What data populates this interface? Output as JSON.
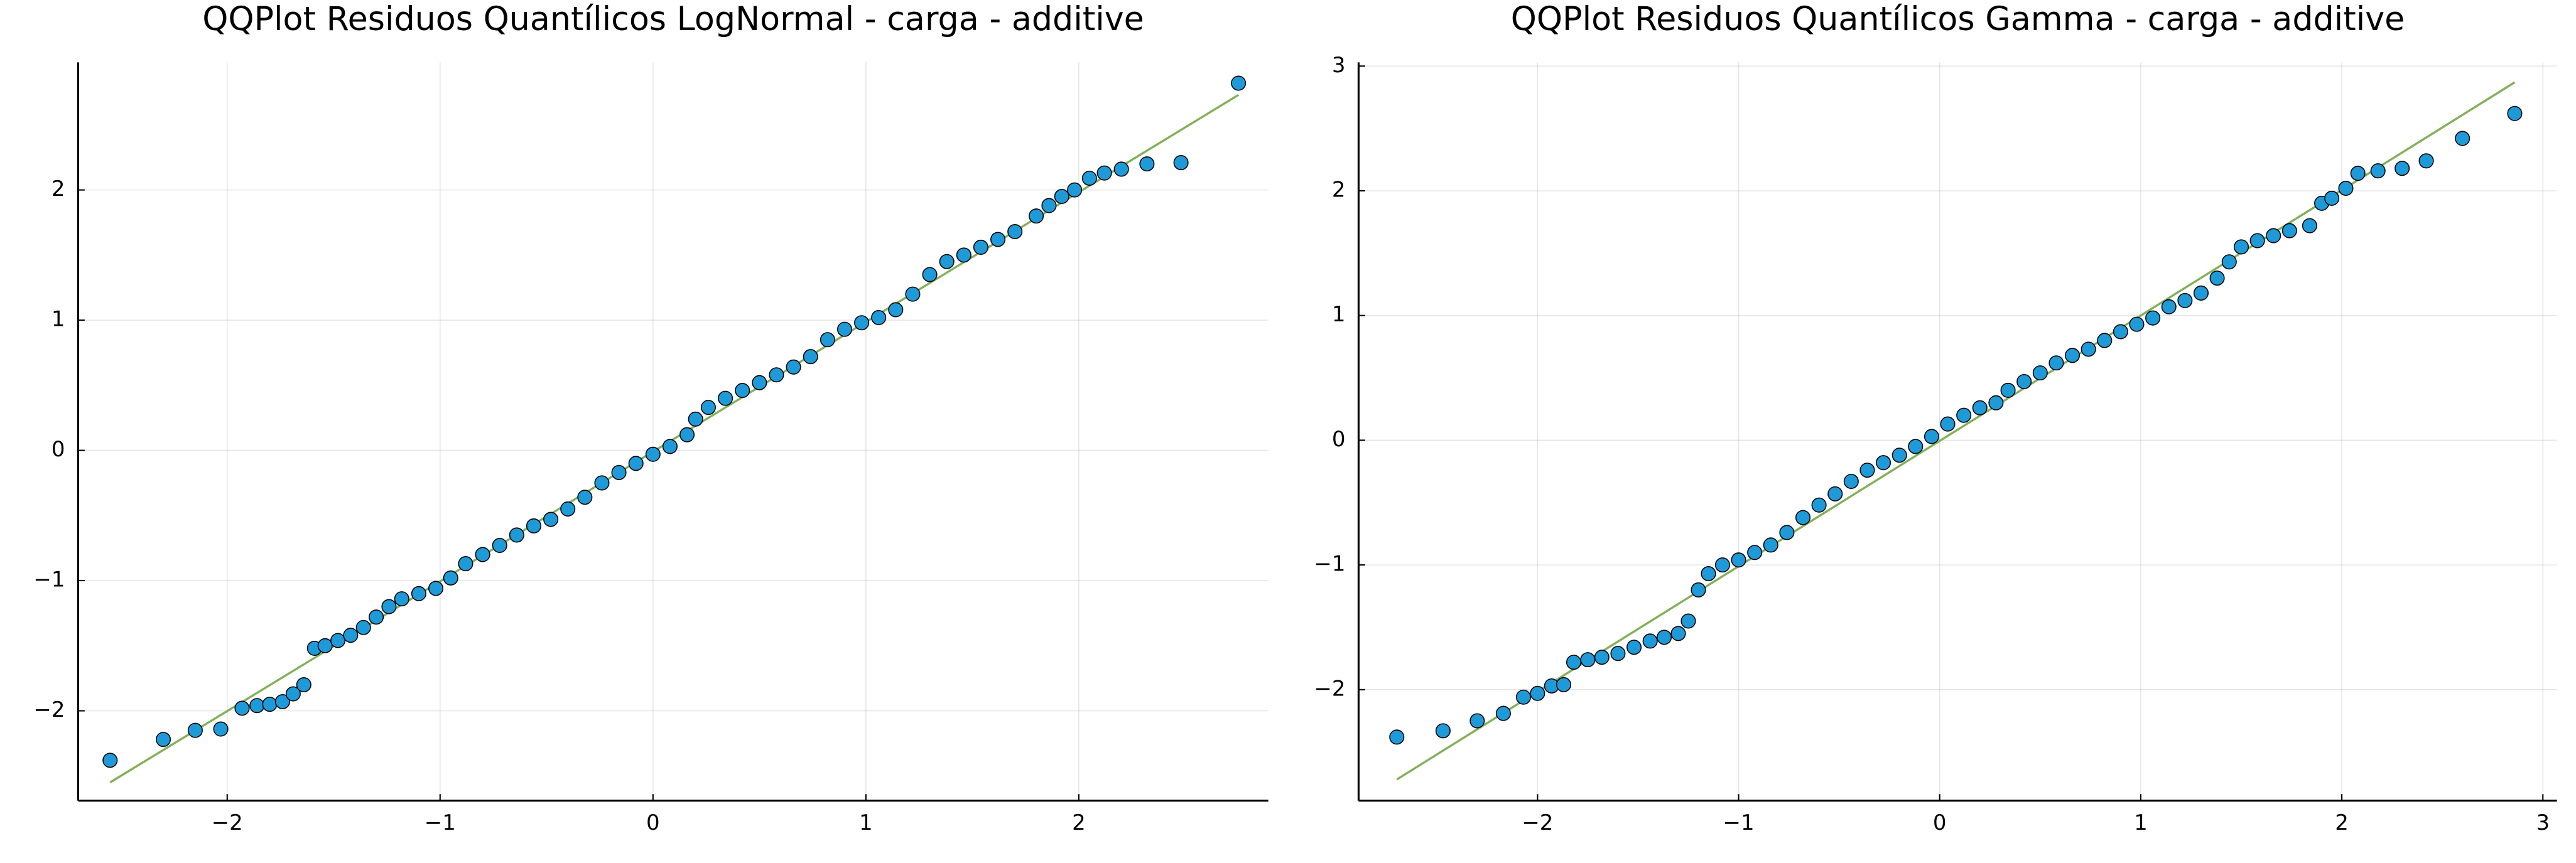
{
  "chart_data": [
    {
      "type": "scatter",
      "title": "QQPlot Residuos Quantílicos LogNormal - carga - additive",
      "xlim": [
        -2.7,
        2.89
      ],
      "ylim": [
        -2.69,
        2.98
      ],
      "xticks": [
        {
          "value": -2,
          "label": "−2"
        },
        {
          "value": -1,
          "label": "−1"
        },
        0,
        1,
        2
      ],
      "yticks": [
        {
          "value": -2,
          "label": "−2"
        },
        {
          "value": -1,
          "label": "−1"
        },
        0,
        1,
        2
      ],
      "grid": true,
      "series": [
        {
          "color": "#1f9ad8",
          "x": [
            -2.55,
            -2.3,
            -2.15,
            -2.03,
            -1.93,
            -1.86,
            -1.8,
            -1.74,
            -1.69,
            -1.64,
            -1.59,
            -1.54,
            -1.48,
            -1.42,
            -1.36,
            -1.3,
            -1.24,
            -1.18,
            -1.1,
            -1.02,
            -0.95,
            -0.88,
            -0.8,
            -0.72,
            -0.64,
            -0.56,
            -0.48,
            -0.4,
            -0.32,
            -0.24,
            -0.16,
            -0.08,
            0,
            0.08,
            0.16,
            0.2,
            0.26,
            0.34,
            0.42,
            0.5,
            0.58,
            0.66,
            0.74,
            0.82,
            0.9,
            0.98,
            1.06,
            1.14,
            1.22,
            1.3,
            1.38,
            1.46,
            1.54,
            1.62,
            1.7,
            1.8,
            1.86,
            1.92,
            1.98,
            2.05,
            2.12,
            2.2,
            2.32,
            2.48,
            2.75
          ],
          "y": [
            -2.38,
            -2.22,
            -2.15,
            -2.14,
            -1.98,
            -1.96,
            -1.95,
            -1.93,
            -1.87,
            -1.8,
            -1.52,
            -1.5,
            -1.46,
            -1.42,
            -1.36,
            -1.28,
            -1.2,
            -1.14,
            -1.1,
            -1.06,
            -0.98,
            -0.87,
            -0.8,
            -0.73,
            -0.65,
            -0.58,
            -0.53,
            -0.45,
            -0.36,
            -0.25,
            -0.17,
            -0.1,
            -0.03,
            0.03,
            0.12,
            0.24,
            0.33,
            0.4,
            0.46,
            0.52,
            0.58,
            0.64,
            0.72,
            0.85,
            0.93,
            0.98,
            1.02,
            1.08,
            1.2,
            1.35,
            1.45,
            1.5,
            1.56,
            1.62,
            1.68,
            1.8,
            1.88,
            1.95,
            2.0,
            2.09,
            2.13,
            2.16,
            2.2,
            2.21,
            2.82
          ]
        }
      ],
      "reference_line": {
        "color": "#82b05a",
        "x": [
          -2.55,
          2.75
        ],
        "y": [
          -2.55,
          2.73
        ]
      }
    },
    {
      "type": "scatter",
      "title": "QQPlot Residuos Quantílicos Gamma - carga - additive",
      "xlim": [
        -2.89,
        3.07
      ],
      "ylim": [
        -2.89,
        3.03
      ],
      "xticks": [
        {
          "value": -2,
          "label": "−2"
        },
        {
          "value": -1,
          "label": "−1"
        },
        0,
        1,
        2,
        3
      ],
      "yticks": [
        {
          "value": -2,
          "label": "−2"
        },
        {
          "value": -1,
          "label": "−1"
        },
        0,
        1,
        2,
        3
      ],
      "grid": true,
      "series": [
        {
          "color": "#1f9ad8",
          "x": [
            -2.7,
            -2.47,
            -2.3,
            -2.17,
            -2.07,
            -2.0,
            -1.93,
            -1.87,
            -1.82,
            -1.75,
            -1.68,
            -1.6,
            -1.52,
            -1.44,
            -1.37,
            -1.3,
            -1.25,
            -1.2,
            -1.15,
            -1.08,
            -1.0,
            -0.92,
            -0.84,
            -0.76,
            -0.68,
            -0.6,
            -0.52,
            -0.44,
            -0.36,
            -0.28,
            -0.2,
            -0.12,
            -0.04,
            0.04,
            0.12,
            0.2,
            0.28,
            0.34,
            0.42,
            0.5,
            0.58,
            0.66,
            0.74,
            0.82,
            0.9,
            0.98,
            1.06,
            1.14,
            1.22,
            1.3,
            1.38,
            1.44,
            1.5,
            1.58,
            1.66,
            1.74,
            1.84,
            1.9,
            1.95,
            2.02,
            2.08,
            2.18,
            2.3,
            2.42,
            2.6,
            2.86
          ],
          "y": [
            -2.38,
            -2.33,
            -2.25,
            -2.19,
            -2.06,
            -2.03,
            -1.97,
            -1.96,
            -1.78,
            -1.76,
            -1.74,
            -1.71,
            -1.66,
            -1.61,
            -1.58,
            -1.55,
            -1.45,
            -1.2,
            -1.07,
            -1.0,
            -0.96,
            -0.9,
            -0.84,
            -0.74,
            -0.62,
            -0.52,
            -0.43,
            -0.33,
            -0.24,
            -0.18,
            -0.12,
            -0.05,
            0.03,
            0.13,
            0.2,
            0.26,
            0.3,
            0.4,
            0.47,
            0.54,
            0.62,
            0.68,
            0.73,
            0.8,
            0.87,
            0.93,
            0.98,
            1.07,
            1.12,
            1.18,
            1.3,
            1.43,
            1.55,
            1.6,
            1.64,
            1.68,
            1.72,
            1.9,
            1.94,
            2.02,
            2.14,
            2.16,
            2.18,
            2.24,
            2.42,
            2.62
          ]
        }
      ],
      "reference_line": {
        "color": "#82b05a",
        "x": [
          -2.7,
          2.86
        ],
        "y": [
          -2.72,
          2.87
        ]
      }
    }
  ]
}
